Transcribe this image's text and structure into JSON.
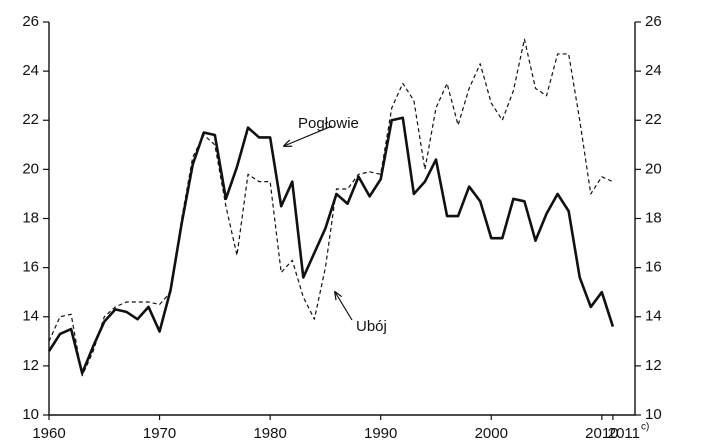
{
  "chart_data": {
    "type": "line",
    "x": [
      1960,
      1961,
      1962,
      1963,
      1964,
      1965,
      1966,
      1967,
      1968,
      1969,
      1970,
      1971,
      1972,
      1973,
      1974,
      1975,
      1976,
      1977,
      1978,
      1979,
      1980,
      1981,
      1982,
      1983,
      1984,
      1985,
      1986,
      1987,
      1988,
      1989,
      1990,
      1991,
      1992,
      1993,
      1994,
      1995,
      1996,
      1997,
      1998,
      1999,
      2000,
      2001,
      2002,
      2003,
      2004,
      2005,
      2006,
      2007,
      2008,
      2009,
      2010,
      2011
    ],
    "series": [
      {
        "name": "Pogłowie",
        "color": "#111111",
        "style": "solid",
        "values": [
          12.6,
          13.3,
          13.5,
          11.7,
          12.8,
          13.8,
          14.3,
          14.2,
          13.9,
          14.4,
          13.4,
          15.1,
          17.8,
          20.2,
          21.5,
          21.4,
          18.8,
          20.1,
          21.7,
          21.3,
          21.3,
          18.5,
          19.5,
          15.6,
          16.6,
          17.6,
          19.0,
          18.6,
          19.7,
          18.9,
          19.6,
          22.0,
          22.1,
          19.0,
          19.5,
          20.4,
          18.1,
          18.1,
          19.3,
          18.7,
          17.2,
          17.2,
          18.8,
          18.7,
          17.1,
          18.2,
          19.0,
          18.3,
          15.6,
          14.4,
          15.0,
          13.6
        ]
      },
      {
        "name": "Ubój",
        "color": "#111111",
        "style": "dashed",
        "axis": "y2",
        "values": [
          13.0,
          14.0,
          14.1,
          11.6,
          12.6,
          14.0,
          14.4,
          14.6,
          14.6,
          14.6,
          14.5,
          15.0,
          18.0,
          20.5,
          21.4,
          21.0,
          18.5,
          16.5,
          19.8,
          19.5,
          19.5,
          15.8,
          16.3,
          14.8,
          13.9,
          16.0,
          19.2,
          19.2,
          19.8,
          19.9,
          19.8,
          22.5,
          23.5,
          22.8,
          20.0,
          22.5,
          23.5,
          21.8,
          23.3,
          24.3,
          22.7,
          22.0,
          23.2,
          25.3,
          23.3,
          23.0,
          24.7,
          24.7,
          22.0,
          19.0,
          19.7,
          19.5
        ]
      }
    ],
    "xlim": [
      1960,
      2013
    ],
    "xticks": [
      1960,
      1970,
      1980,
      1990,
      2000,
      2010,
      2011
    ],
    "xtick_footnote": "c)",
    "ylim": [
      10,
      26
    ],
    "yticks": [
      10,
      12,
      14,
      16,
      18,
      20,
      22,
      24,
      26
    ],
    "y2lim": [
      10,
      26
    ],
    "y2ticks": [
      10,
      12,
      14,
      16,
      18,
      20,
      22,
      24,
      26
    ],
    "grid": false
  }
}
